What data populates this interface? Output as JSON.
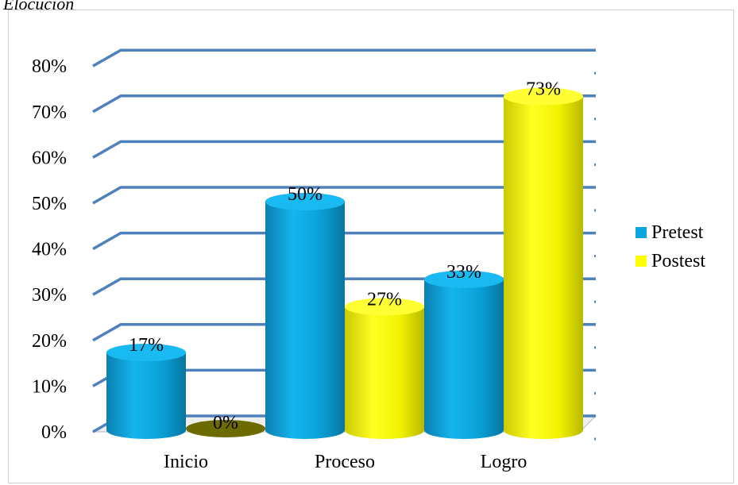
{
  "title": "Elocución",
  "chart_data": {
    "type": "bar",
    "categories": [
      "Inicio",
      "Proceso",
      "Logro"
    ],
    "series": [
      {
        "name": "Pretest",
        "values": [
          17,
          50,
          33
        ],
        "labels": [
          "17%",
          "50%",
          "33%"
        ],
        "color": "#0aa6de"
      },
      {
        "name": "Postest",
        "values": [
          0,
          27,
          73
        ],
        "labels": [
          "0%",
          "27%",
          "73%"
        ],
        "color": "#ffff00"
      }
    ],
    "yticks": [
      "0%",
      "10%",
      "20%",
      "30%",
      "40%",
      "50%",
      "60%",
      "70%",
      "80%"
    ],
    "ylim": [
      0,
      80
    ],
    "grid": true,
    "legend_position": "right",
    "gridline_color": "#4f81bd"
  }
}
